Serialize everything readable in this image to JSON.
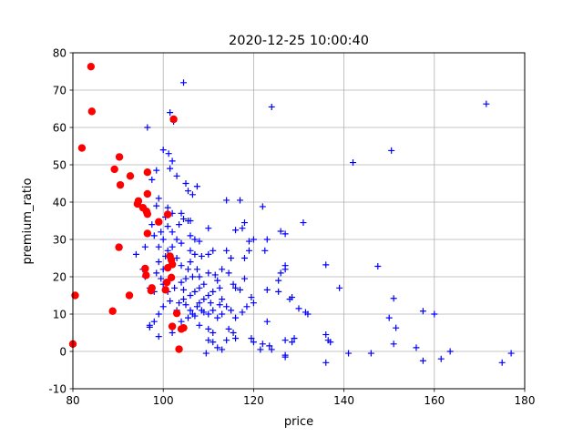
{
  "chart_data": {
    "type": "scatter",
    "title": "2020-12-25 10:00:40",
    "xlabel": "price",
    "ylabel": "premium_ratio",
    "xlim": [
      80,
      180
    ],
    "ylim": [
      -10,
      80
    ],
    "xticks": [
      80,
      100,
      120,
      140,
      160,
      180
    ],
    "yticks": [
      -10,
      0,
      10,
      20,
      30,
      40,
      50,
      60,
      70,
      80
    ],
    "grid": true,
    "colors": {
      "plus": "#0000ff",
      "red": "#ff0000"
    },
    "series": [
      {
        "marker": "plus",
        "color": "#0000ff",
        "points": [
          [
            104.5,
            72
          ],
          [
            171.5,
            66.3
          ],
          [
            124,
            65.5
          ],
          [
            101.5,
            64
          ],
          [
            102.3,
            61.6
          ],
          [
            96.5,
            60
          ],
          [
            150.5,
            53.8
          ],
          [
            142,
            50.6
          ],
          [
            101.2,
            53
          ],
          [
            102,
            51
          ],
          [
            100,
            54
          ],
          [
            98.5,
            48.5
          ],
          [
            101.5,
            49
          ],
          [
            103,
            47
          ],
          [
            105,
            45
          ],
          [
            107.5,
            44.2
          ],
          [
            105.5,
            43
          ],
          [
            106.5,
            42
          ],
          [
            97.5,
            46
          ],
          [
            99,
            41
          ],
          [
            98.5,
            39
          ],
          [
            101,
            38.5
          ],
          [
            102,
            37
          ],
          [
            100.5,
            36
          ],
          [
            104.5,
            35.5
          ],
          [
            105.5,
            35
          ],
          [
            103.5,
            34
          ],
          [
            101,
            33.5
          ],
          [
            99.5,
            32
          ],
          [
            97.5,
            34
          ],
          [
            114,
            40.5
          ],
          [
            117,
            40.5
          ],
          [
            122,
            38.8
          ],
          [
            131,
            34.5
          ],
          [
            126,
            32.2
          ],
          [
            127,
            31.5
          ],
          [
            118,
            34.5
          ],
          [
            117.5,
            33
          ],
          [
            116,
            32.5
          ],
          [
            119,
            29.5
          ],
          [
            123,
            30
          ],
          [
            122.5,
            27
          ],
          [
            114,
            27
          ],
          [
            115,
            25
          ],
          [
            110,
            33
          ],
          [
            108,
            29.5
          ],
          [
            106,
            31
          ],
          [
            107,
            30
          ],
          [
            103,
            30
          ],
          [
            104,
            29
          ],
          [
            101,
            27
          ],
          [
            102,
            28
          ],
          [
            100.5,
            25.5
          ],
          [
            99,
            24
          ],
          [
            100,
            22
          ],
          [
            98.5,
            21
          ],
          [
            99.5,
            19.5
          ],
          [
            100,
            18
          ],
          [
            101,
            16
          ],
          [
            102.5,
            17
          ],
          [
            104,
            18.5
          ],
          [
            105,
            19.5
          ],
          [
            106.5,
            20
          ],
          [
            105.5,
            22
          ],
          [
            104,
            23
          ],
          [
            103,
            25
          ],
          [
            106,
            24
          ],
          [
            107,
            26
          ],
          [
            108.5,
            25.5
          ],
          [
            110,
            26
          ],
          [
            111,
            27
          ],
          [
            113,
            22
          ],
          [
            114.5,
            21
          ],
          [
            110,
            21
          ],
          [
            111.5,
            20.5
          ],
          [
            112,
            19
          ],
          [
            109,
            18
          ],
          [
            108,
            17
          ],
          [
            107,
            16
          ],
          [
            106,
            15
          ],
          [
            104.5,
            14
          ],
          [
            103.5,
            13
          ],
          [
            101.5,
            13.5
          ],
          [
            100,
            12
          ],
          [
            99,
            10
          ],
          [
            98,
            8
          ],
          [
            97,
            7
          ],
          [
            97,
            6.5
          ],
          [
            99,
            4
          ],
          [
            102,
            5
          ],
          [
            104,
            8
          ],
          [
            105.5,
            9
          ],
          [
            106,
            11
          ],
          [
            107.5,
            12
          ],
          [
            108,
            13
          ],
          [
            109,
            14
          ],
          [
            110,
            15
          ],
          [
            111,
            16
          ],
          [
            112.5,
            17
          ],
          [
            113,
            14
          ],
          [
            114,
            12
          ],
          [
            115.5,
            18
          ],
          [
            116,
            17
          ],
          [
            117,
            16.5
          ],
          [
            118,
            19.5
          ],
          [
            119.5,
            14.5
          ],
          [
            120,
            13
          ],
          [
            118.5,
            12
          ],
          [
            117.5,
            10.5
          ],
          [
            115,
            11
          ],
          [
            116,
            9
          ],
          [
            112,
            9
          ],
          [
            111,
            11
          ],
          [
            110,
            10
          ],
          [
            109,
            10.5
          ],
          [
            108,
            7
          ],
          [
            110,
            6
          ],
          [
            111,
            5
          ],
          [
            110,
            3
          ],
          [
            111,
            2.5
          ],
          [
            112,
            1
          ],
          [
            113,
            0.5
          ],
          [
            109.5,
            -0.5
          ],
          [
            114,
            3
          ],
          [
            115.5,
            5
          ],
          [
            116,
            3.5
          ],
          [
            114.5,
            6
          ],
          [
            120,
            2.5
          ],
          [
            119.5,
            3.5
          ],
          [
            121.5,
            0.5
          ],
          [
            124,
            0.5
          ],
          [
            123.5,
            1.5
          ],
          [
            122,
            2
          ],
          [
            123,
            8
          ],
          [
            125.5,
            16
          ],
          [
            125.5,
            19
          ],
          [
            123,
            16.5
          ],
          [
            126,
            21
          ],
          [
            127,
            23
          ],
          [
            127,
            22
          ],
          [
            128,
            14
          ],
          [
            128.5,
            14.5
          ],
          [
            130,
            11.5
          ],
          [
            131.5,
            10.5
          ],
          [
            132,
            10
          ],
          [
            127,
            3
          ],
          [
            128.5,
            2.5
          ],
          [
            129,
            3.5
          ],
          [
            127,
            -1
          ],
          [
            127,
            -1.5
          ],
          [
            136,
            23.2
          ],
          [
            139,
            17
          ],
          [
            147.5,
            22.8
          ],
          [
            151,
            14.2
          ],
          [
            151.5,
            6.3
          ],
          [
            150,
            9
          ],
          [
            151,
            2
          ],
          [
            136,
            4.5
          ],
          [
            136.5,
            3
          ],
          [
            137,
            2.5
          ],
          [
            136,
            -3
          ],
          [
            141,
            -0.5
          ],
          [
            146,
            -0.5
          ],
          [
            156,
            1
          ],
          [
            157.5,
            10.8
          ],
          [
            160,
            10
          ],
          [
            157.5,
            -2.5
          ],
          [
            161.5,
            -2
          ],
          [
            163.5,
            0
          ],
          [
            175,
            -3
          ],
          [
            177,
            -0.5
          ],
          [
            94,
            26
          ],
          [
            96,
            28
          ],
          [
            95.5,
            22
          ],
          [
            96,
            20
          ],
          [
            97,
            17
          ],
          [
            98,
            16
          ],
          [
            92.5,
            15
          ],
          [
            99,
            28
          ],
          [
            100,
            30
          ],
          [
            98,
            31
          ],
          [
            102,
            32
          ],
          [
            106,
            35
          ],
          [
            104,
            37
          ],
          [
            101,
            36.5
          ],
          [
            106,
            27
          ],
          [
            107.5,
            22
          ],
          [
            108,
            20
          ],
          [
            104.5,
            16.5
          ],
          [
            103,
            11
          ],
          [
            105,
            12.5
          ],
          [
            106.5,
            10
          ],
          [
            107,
            9.5
          ],
          [
            108.5,
            11
          ],
          [
            110.5,
            13
          ],
          [
            112.5,
            12.5
          ],
          [
            113,
            10
          ],
          [
            118,
            25
          ],
          [
            119,
            27
          ],
          [
            120,
            30
          ]
        ]
      },
      {
        "marker": "circle",
        "color": "#ff0000",
        "points": [
          [
            84,
            76.3
          ],
          [
            84.2,
            64.3
          ],
          [
            102.3,
            62.2
          ],
          [
            82,
            54.5
          ],
          [
            90.3,
            52.1
          ],
          [
            89.2,
            48.8
          ],
          [
            96.5,
            48
          ],
          [
            92.7,
            47
          ],
          [
            90.5,
            44.6
          ],
          [
            96.5,
            42.2
          ],
          [
            94.5,
            40.3
          ],
          [
            94.3,
            39.5
          ],
          [
            95.5,
            38.5
          ],
          [
            96.3,
            37.5
          ],
          [
            96.5,
            36.8
          ],
          [
            101,
            36.7
          ],
          [
            99,
            34.7
          ],
          [
            96.5,
            31.6
          ],
          [
            90.2,
            27.9
          ],
          [
            101.5,
            25.5
          ],
          [
            101.8,
            24.5
          ],
          [
            102,
            23.3
          ],
          [
            101,
            22.4
          ],
          [
            96,
            22.2
          ],
          [
            96.2,
            20.4
          ],
          [
            101.8,
            19.8
          ],
          [
            100.8,
            18.5
          ],
          [
            97.5,
            17
          ],
          [
            97.3,
            16.3
          ],
          [
            100.5,
            16.5
          ],
          [
            80.5,
            15
          ],
          [
            92.5,
            15
          ],
          [
            88.8,
            10.8
          ],
          [
            103,
            10.2
          ],
          [
            102,
            6.7
          ],
          [
            104.5,
            6.3
          ],
          [
            104,
            6
          ],
          [
            103.5,
            0.6
          ],
          [
            80,
            2
          ]
        ]
      }
    ]
  }
}
